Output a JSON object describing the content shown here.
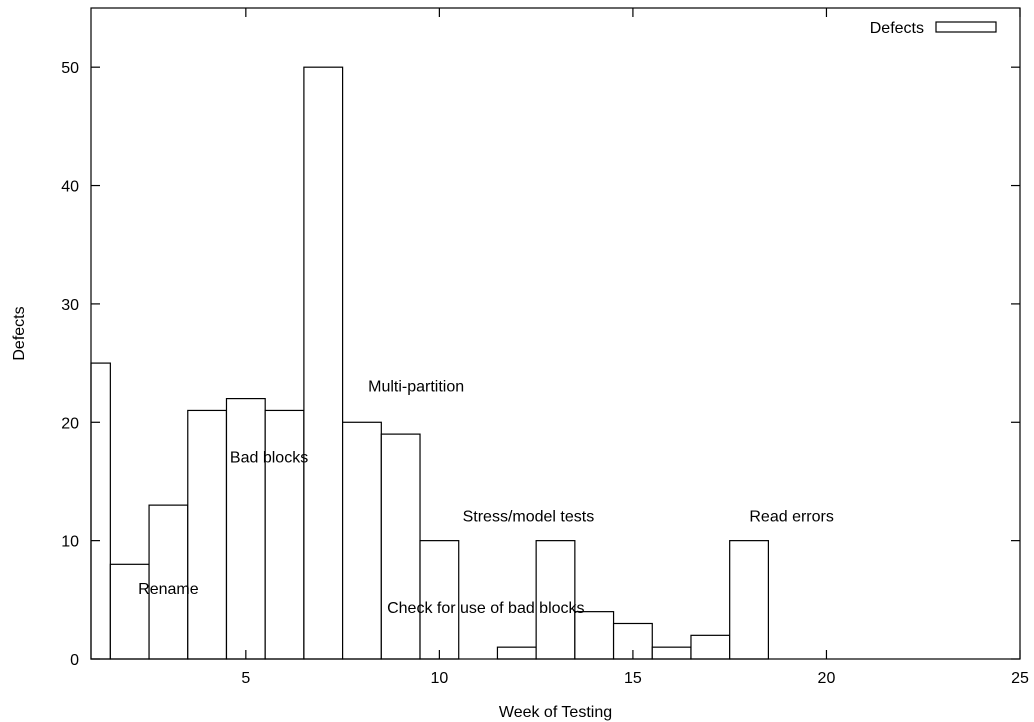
{
  "chart_data": {
    "type": "bar",
    "xlabel": "Week of Testing",
    "ylabel": "Defects",
    "xlim": [
      1,
      25
    ],
    "ylim": [
      0,
      55
    ],
    "x_ticks": [
      5,
      10,
      15,
      20,
      25
    ],
    "y_ticks": [
      0,
      10,
      20,
      30,
      40,
      50
    ],
    "grid": false,
    "legend_position": "top-right",
    "series": [
      {
        "name": "Defects",
        "x": [
          1,
          2,
          3,
          4,
          5,
          6,
          7,
          8,
          9,
          10,
          11,
          12,
          13,
          14,
          15,
          16,
          17,
          18
        ],
        "values": [
          25,
          8,
          13,
          21,
          22,
          21,
          50,
          20,
          19,
          10,
          0,
          1,
          10,
          4,
          3,
          1,
          2,
          10
        ]
      }
    ],
    "annotations": [
      {
        "text": "Rename",
        "x": 3,
        "y": 5.5
      },
      {
        "text": "Bad blocks",
        "x": 5.6,
        "y": 16.6
      },
      {
        "text": "Multi-partition",
        "x": 9.4,
        "y": 22.6
      },
      {
        "text": "Stress/model tests",
        "x": 12.3,
        "y": 11.6
      },
      {
        "text": "Check for use of bad blocks",
        "x": 11.2,
        "y": 3.9
      },
      {
        "text": "Read errors",
        "x": 19.1,
        "y": 11.6
      }
    ]
  }
}
